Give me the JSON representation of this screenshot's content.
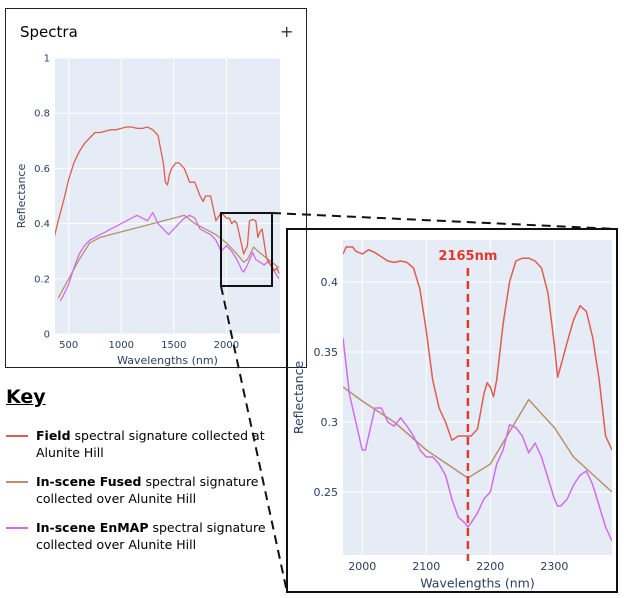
{
  "panel": {
    "title": "Spectra",
    "expand_label": "+"
  },
  "key": {
    "title": "Key",
    "items": [
      {
        "bold": "Field",
        "text": " spectral signature collected at Alunite Hill",
        "color": "#e05c4f"
      },
      {
        "bold": "In-scene Fused",
        "text": " spectral signature collected over Alunite Hill",
        "color": "#b9906a"
      },
      {
        "bold": "In-scene EnMAP",
        "text": " spectral signature collected over Alunite Hill",
        "color": "#d36be8"
      }
    ]
  },
  "colors": {
    "plot_bg": "#e5ecf6",
    "grid": "#ffffff",
    "field": "#e05c4f",
    "fused": "#b9906a",
    "enmap": "#d36be8",
    "marker": "#e03a2f"
  },
  "chart_data": [
    {
      "type": "line",
      "xlabel": "Wavelengths (nm)",
      "ylabel": "Reflectance",
      "xlim": [
        370,
        2510
      ],
      "ylim": [
        0,
        1
      ],
      "xticks": [
        500,
        1000,
        1500,
        2000
      ],
      "yticks": [
        0,
        0.2,
        0.4,
        0.6,
        0.8,
        1
      ],
      "ytick_labels": [
        "0",
        "0.2",
        "0.4",
        "0.6",
        "0.8",
        "1"
      ],
      "grid": true,
      "series": [
        {
          "key": "field",
          "x": [
            350,
            400,
            450,
            500,
            550,
            600,
            650,
            700,
            750,
            800,
            850,
            900,
            950,
            1000,
            1050,
            1100,
            1150,
            1200,
            1250,
            1300,
            1350,
            1400,
            1420,
            1440,
            1460,
            1480,
            1500,
            1520,
            1550,
            1600,
            1650,
            1700,
            1750,
            1780,
            1800,
            1850,
            1900,
            1950,
            2000,
            2030,
            2050,
            2080,
            2100,
            2130,
            2165,
            2200,
            2220,
            2250,
            2280,
            2300,
            2320,
            2340,
            2360,
            2380,
            2400,
            2420,
            2440,
            2460,
            2480,
            2500
          ],
          "y": [
            0.33,
            0.41,
            0.48,
            0.56,
            0.62,
            0.66,
            0.69,
            0.71,
            0.73,
            0.73,
            0.735,
            0.74,
            0.74,
            0.745,
            0.75,
            0.75,
            0.745,
            0.745,
            0.75,
            0.74,
            0.72,
            0.62,
            0.55,
            0.54,
            0.58,
            0.6,
            0.61,
            0.62,
            0.62,
            0.6,
            0.55,
            0.55,
            0.5,
            0.48,
            0.5,
            0.5,
            0.41,
            0.44,
            0.42,
            0.42,
            0.4,
            0.41,
            0.4,
            0.35,
            0.29,
            0.32,
            0.41,
            0.415,
            0.41,
            0.35,
            0.37,
            0.38,
            0.33,
            0.28,
            0.26,
            0.25,
            0.24,
            0.23,
            0.24,
            0.22
          ]
        },
        {
          "key": "fused",
          "x": [
            400,
            500,
            600,
            700,
            800,
            900,
            1000,
            1100,
            1200,
            1300,
            1400,
            1500,
            1600,
            1700,
            1800,
            1900,
            2000,
            2100,
            2165,
            2200,
            2260,
            2300,
            2400,
            2500
          ],
          "y": [
            0.13,
            0.2,
            0.27,
            0.33,
            0.35,
            0.36,
            0.37,
            0.38,
            0.39,
            0.4,
            0.41,
            0.42,
            0.43,
            0.4,
            0.38,
            0.36,
            0.33,
            0.29,
            0.26,
            0.27,
            0.315,
            0.3,
            0.27,
            0.24
          ]
        },
        {
          "key": "enmap",
          "x": [
            420,
            450,
            500,
            550,
            600,
            650,
            700,
            750,
            800,
            850,
            900,
            950,
            1000,
            1050,
            1100,
            1150,
            1200,
            1250,
            1300,
            1350,
            1400,
            1450,
            1500,
            1550,
            1600,
            1650,
            1700,
            1750,
            1800,
            1850,
            1900,
            1950,
            2000,
            2050,
            2100,
            2150,
            2165,
            2200,
            2250,
            2280,
            2320,
            2360,
            2400,
            2450,
            2500
          ],
          "y": [
            0.12,
            0.14,
            0.18,
            0.24,
            0.29,
            0.32,
            0.34,
            0.35,
            0.36,
            0.37,
            0.38,
            0.39,
            0.4,
            0.41,
            0.42,
            0.43,
            0.42,
            0.41,
            0.44,
            0.4,
            0.38,
            0.36,
            0.38,
            0.4,
            0.42,
            0.43,
            0.42,
            0.38,
            0.37,
            0.36,
            0.34,
            0.3,
            0.32,
            0.3,
            0.27,
            0.23,
            0.225,
            0.25,
            0.295,
            0.27,
            0.26,
            0.25,
            0.265,
            0.23,
            0.2
          ]
        }
      ]
    },
    {
      "type": "line",
      "xlabel": "Wavelengths (nm)",
      "ylabel": "Reflectance",
      "xlim": [
        1970,
        2390
      ],
      "ylim": [
        0.205,
        0.43
      ],
      "xticks": [
        2000,
        2100,
        2200,
        2300
      ],
      "yticks": [
        0.25,
        0.3,
        0.35,
        0.4
      ],
      "ytick_labels": [
        "0.25",
        "0.3",
        "0.35",
        "0.4"
      ],
      "grid": true,
      "annotation": {
        "x": 2165,
        "label": "2165nm"
      },
      "series": [
        {
          "key": "field",
          "x": [
            1970,
            1975,
            1980,
            1985,
            1990,
            2000,
            2010,
            2020,
            2030,
            2040,
            2050,
            2060,
            2070,
            2080,
            2090,
            2100,
            2110,
            2120,
            2130,
            2140,
            2150,
            2160,
            2165,
            2170,
            2180,
            2190,
            2195,
            2200,
            2205,
            2210,
            2220,
            2230,
            2240,
            2250,
            2260,
            2270,
            2280,
            2290,
            2300,
            2305,
            2310,
            2320,
            2330,
            2340,
            2350,
            2360,
            2370,
            2380,
            2390
          ],
          "y": [
            0.42,
            0.425,
            0.425,
            0.425,
            0.422,
            0.42,
            0.423,
            0.421,
            0.418,
            0.415,
            0.414,
            0.415,
            0.414,
            0.41,
            0.395,
            0.365,
            0.33,
            0.31,
            0.3,
            0.287,
            0.29,
            0.29,
            0.29,
            0.29,
            0.295,
            0.32,
            0.328,
            0.325,
            0.318,
            0.33,
            0.37,
            0.4,
            0.415,
            0.417,
            0.417,
            0.415,
            0.41,
            0.392,
            0.355,
            0.332,
            0.34,
            0.357,
            0.373,
            0.383,
            0.379,
            0.36,
            0.33,
            0.29,
            0.28
          ]
        },
        {
          "key": "fused",
          "x": [
            1970,
            2000,
            2050,
            2100,
            2165,
            2200,
            2260,
            2300,
            2330,
            2390
          ],
          "y": [
            0.325,
            0.315,
            0.3,
            0.28,
            0.26,
            0.27,
            0.316,
            0.296,
            0.275,
            0.25
          ]
        },
        {
          "key": "enmap",
          "x": [
            1970,
            1980,
            1990,
            2000,
            2005,
            2010,
            2020,
            2030,
            2040,
            2050,
            2060,
            2070,
            2080,
            2090,
            2100,
            2110,
            2120,
            2130,
            2140,
            2150,
            2160,
            2165,
            2170,
            2180,
            2190,
            2200,
            2210,
            2220,
            2230,
            2240,
            2250,
            2260,
            2270,
            2280,
            2290,
            2300,
            2305,
            2310,
            2320,
            2330,
            2340,
            2350,
            2360,
            2370,
            2380,
            2390
          ],
          "y": [
            0.36,
            0.32,
            0.3,
            0.28,
            0.28,
            0.29,
            0.31,
            0.31,
            0.3,
            0.297,
            0.303,
            0.297,
            0.29,
            0.28,
            0.275,
            0.275,
            0.27,
            0.262,
            0.245,
            0.232,
            0.228,
            0.225,
            0.228,
            0.235,
            0.245,
            0.25,
            0.27,
            0.28,
            0.298,
            0.296,
            0.29,
            0.278,
            0.285,
            0.275,
            0.26,
            0.245,
            0.24,
            0.24,
            0.245,
            0.255,
            0.262,
            0.265,
            0.255,
            0.24,
            0.225,
            0.215
          ]
        }
      ]
    }
  ]
}
